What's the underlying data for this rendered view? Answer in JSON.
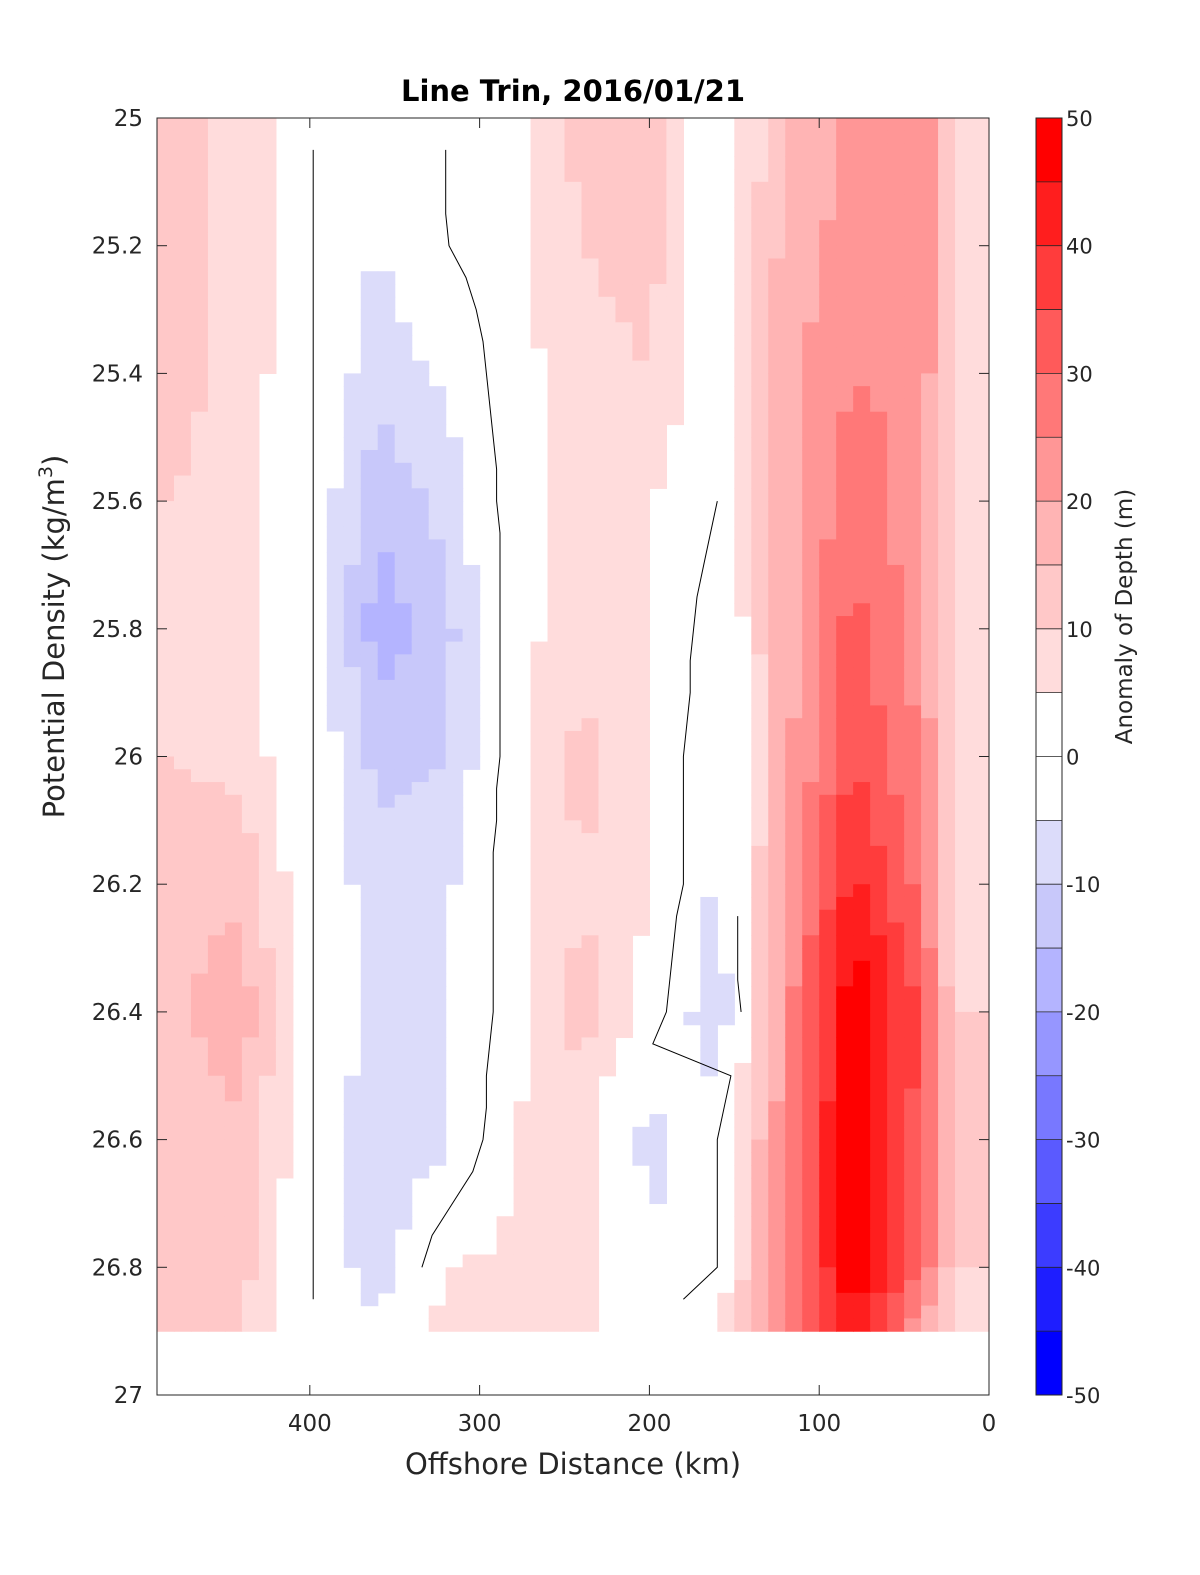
{
  "chart_data": {
    "type": "heatmap",
    "title": "Line Trin, 2016/01/21",
    "xlabel": "Offshore Distance (km)",
    "ylabel_main": "Potential Density (kg/m",
    "ylabel_sup": "3",
    "ylabel_end": ")",
    "xlim": [
      490,
      0
    ],
    "ylim": [
      25,
      27
    ],
    "x_reversed": true,
    "y_reversed": true,
    "xticks": [
      400,
      300,
      200,
      100,
      0
    ],
    "xtick_labels": [
      "400",
      "300",
      "200",
      "100",
      "0"
    ],
    "yticks": [
      25,
      25.2,
      25.4,
      25.6,
      25.8,
      26,
      26.2,
      26.4,
      26.6,
      26.8,
      27
    ],
    "ytick_labels": [
      "25",
      "25.2",
      "25.4",
      "25.6",
      "25.8",
      "26",
      "26.2",
      "26.4",
      "26.6",
      "26.8",
      "27"
    ],
    "colorbar": {
      "label": "Anomaly of Depth (m)",
      "range": [
        -50,
        50
      ],
      "step": 5,
      "ticks": [
        50,
        40,
        30,
        20,
        10,
        0,
        -10,
        -20,
        -30,
        -40,
        -50
      ],
      "tick_labels": [
        "50",
        "40",
        "30",
        "20",
        "10",
        "0",
        "-10",
        "-20",
        "-30",
        "-40",
        "-50"
      ]
    },
    "grid": false,
    "x": [
      480,
      440,
      400,
      360,
      320,
      280,
      240,
      200,
      160,
      120,
      80,
      40,
      20
    ],
    "y": [
      25.0,
      25.2,
      25.4,
      25.6,
      25.8,
      26.0,
      26.2,
      26.4,
      26.6,
      26.8,
      26.9
    ],
    "z": [
      [
        12,
        8,
        0,
        0,
        0,
        3,
        12,
        12,
        0,
        15,
        22,
        25,
        8
      ],
      [
        12,
        8,
        0,
        -5,
        0,
        3,
        10,
        12,
        0,
        17,
        22,
        25,
        8
      ],
      [
        12,
        8,
        0,
        -8,
        -4,
        3,
        8,
        10,
        0,
        18,
        25,
        24,
        8
      ],
      [
        10,
        7,
        0,
        -14,
        -8,
        3,
        8,
        5,
        0,
        18,
        28,
        22,
        8
      ],
      [
        8,
        6,
        0,
        -18,
        -12,
        3,
        8,
        5,
        -3,
        18,
        32,
        22,
        8
      ],
      [
        10,
        8,
        0,
        -12,
        -10,
        3,
        12,
        5,
        -5,
        18,
        35,
        25,
        8
      ],
      [
        14,
        14,
        0,
        -8,
        -6,
        3,
        10,
        5,
        -6,
        20,
        42,
        28,
        6
      ],
      [
        14,
        18,
        0,
        -6,
        -6,
        3,
        12,
        3,
        -10,
        22,
        50,
        34,
        10
      ],
      [
        12,
        14,
        0,
        -10,
        -6,
        5,
        8,
        -8,
        0,
        24,
        50,
        32,
        10
      ],
      [
        10,
        12,
        0,
        -8,
        5,
        6,
        8,
        -3,
        0,
        24,
        50,
        30,
        10
      ],
      [
        10,
        10,
        0,
        -4,
        8,
        10,
        6,
        -3,
        6,
        24,
        45,
        20,
        6
      ]
    ]
  }
}
